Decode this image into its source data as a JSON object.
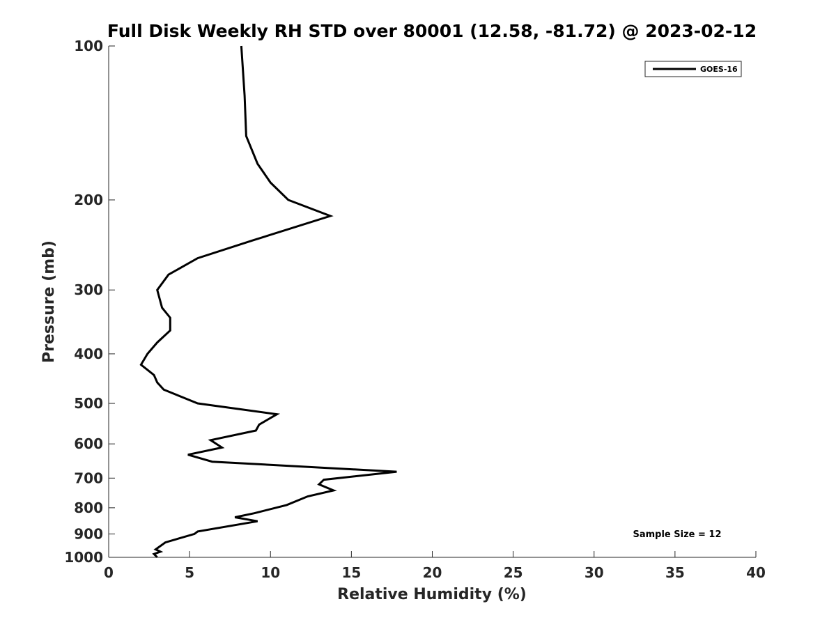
{
  "chart_data": {
    "type": "line",
    "title": "Full Disk Weekly RH STD over 80001 (12.58, -81.72) @ 2023-02-12",
    "xlabel": "Relative Humidity (%)",
    "ylabel": "Pressure (mb)",
    "xlim": [
      0,
      40
    ],
    "ylim": [
      100,
      1000
    ],
    "yscale": "log",
    "xticks": [
      "0",
      "5",
      "10",
      "15",
      "20",
      "25",
      "30",
      "35",
      "40"
    ],
    "yticks": [
      "100",
      "200",
      "300",
      "400",
      "500",
      "600",
      "700",
      "800",
      "900",
      "1000"
    ],
    "legend": {
      "position": "top-right",
      "entries": [
        "GOES-16"
      ]
    },
    "annotation": "Sample Size = 12",
    "series": [
      {
        "name": "GOES-16",
        "color": "#000000",
        "points": [
          [
            8.2,
            100
          ],
          [
            8.4,
            125
          ],
          [
            8.5,
            150
          ],
          [
            9.2,
            170
          ],
          [
            10.0,
            185
          ],
          [
            11.1,
            200
          ],
          [
            13.7,
            215
          ],
          [
            8.9,
            240
          ],
          [
            5.5,
            260
          ],
          [
            3.7,
            280
          ],
          [
            3.0,
            300
          ],
          [
            3.3,
            325
          ],
          [
            3.8,
            340
          ],
          [
            3.8,
            360
          ],
          [
            3.0,
            380
          ],
          [
            2.4,
            400
          ],
          [
            2.0,
            420
          ],
          [
            2.8,
            440
          ],
          [
            3.0,
            455
          ],
          [
            3.4,
            470
          ],
          [
            5.5,
            500
          ],
          [
            10.4,
            525
          ],
          [
            9.3,
            550
          ],
          [
            9.1,
            565
          ],
          [
            6.3,
            590
          ],
          [
            7.0,
            610
          ],
          [
            4.9,
            630
          ],
          [
            6.4,
            650
          ],
          [
            17.8,
            680
          ],
          [
            13.3,
            705
          ],
          [
            13.0,
            720
          ],
          [
            13.9,
            740
          ],
          [
            12.3,
            760
          ],
          [
            11.0,
            790
          ],
          [
            9.0,
            820
          ],
          [
            7.8,
            835
          ],
          [
            9.2,
            850
          ],
          [
            5.5,
            890
          ],
          [
            5.3,
            900
          ],
          [
            3.5,
            935
          ],
          [
            2.9,
            965
          ],
          [
            3.2,
            975
          ],
          [
            2.8,
            985
          ],
          [
            3.0,
            1000
          ]
        ]
      }
    ]
  }
}
